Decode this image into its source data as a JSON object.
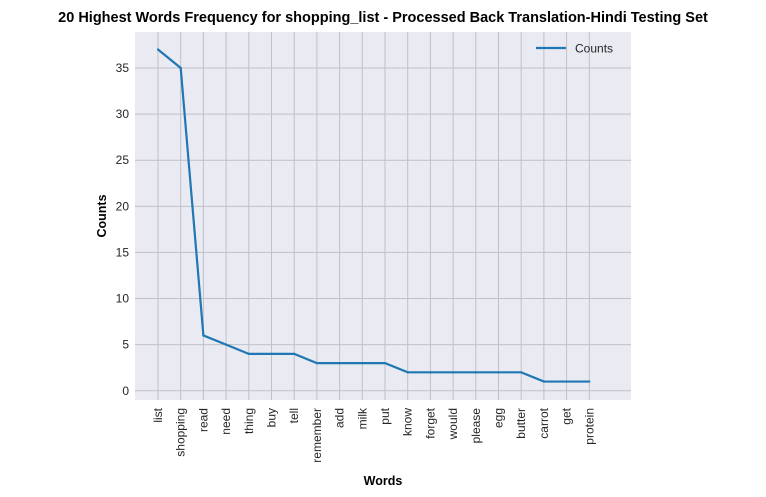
{
  "chart_data": {
    "type": "line",
    "title": "20 Highest Words Frequency for shopping_list - Processed Back Translation-Hindi Testing Set",
    "xlabel": "Words",
    "ylabel": "Counts",
    "categories": [
      "list",
      "shopping",
      "read",
      "need",
      "thing",
      "buy",
      "tell",
      "remember",
      "add",
      "milk",
      "put",
      "know",
      "forget",
      "would",
      "please",
      "egg",
      "butter",
      "carrot",
      "get",
      "protein"
    ],
    "series": [
      {
        "name": "Counts",
        "values": [
          37,
          35,
          6,
          5,
          4,
          4,
          4,
          3,
          3,
          3,
          3,
          2,
          2,
          2,
          2,
          2,
          2,
          1,
          1,
          1
        ]
      }
    ],
    "yticks": [
      0,
      5,
      10,
      15,
      20,
      25,
      30,
      35
    ],
    "ylim": [
      -1,
      38.9
    ],
    "grid": true,
    "legend": "top-right",
    "colors": {
      "line": "#1f77b4",
      "background": "#eaeaf2",
      "grid": "#c0c0c8"
    }
  }
}
